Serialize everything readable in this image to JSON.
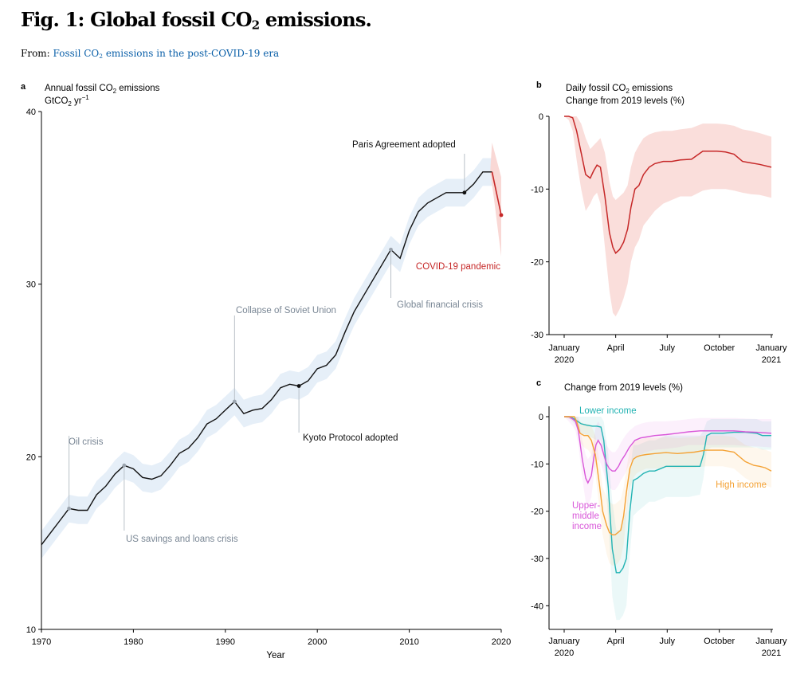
{
  "header": {
    "title_pre": "Fig. 1: Global fossil CO",
    "title_sub": "2",
    "title_post": " emissions.",
    "from_label": "From:",
    "source_pre": "Fossil CO",
    "source_sub": "2",
    "source_post": " emissions in the post-COVID-19 era"
  },
  "colors": {
    "black_line": "#111111",
    "covid_red": "#c62828",
    "red_band": "#f9d8d5",
    "blue_band": "#e6eff8",
    "annotation_gray": "#7a8795",
    "lower_income": "#22b3b3",
    "upper_middle_income": "#d957d9",
    "high_income": "#f4a235"
  },
  "chart_data": [
    {
      "panel": "a",
      "type": "line",
      "ylabel_line1": "Annual fossil CO",
      "ylabel_sub": "2",
      "ylabel_post": " emissions",
      "yunit_pre": "GtCO",
      "yunit_sub": "2",
      "yunit_post": " yr",
      "yunit_sup": "−1",
      "xlabel": "Year",
      "xlim": [
        1970,
        2020
      ],
      "ylim": [
        10,
        40
      ],
      "xticks": [
        1970,
        1980,
        1990,
        2000,
        2010,
        2020
      ],
      "yticks": [
        10,
        20,
        30,
        40
      ],
      "series": [
        {
          "x": [
            1970,
            1971,
            1972,
            1973,
            1974,
            1975,
            1976,
            1977,
            1978,
            1979,
            1980,
            1981,
            1982,
            1983,
            1984,
            1985,
            1986,
            1987,
            1988,
            1989,
            1990,
            1991,
            1992,
            1993,
            1994,
            1995,
            1996,
            1997,
            1998,
            1999,
            2000,
            2001,
            2002,
            2003,
            2004,
            2005,
            2006,
            2007,
            2008,
            2009,
            2010,
            2011,
            2012,
            2013,
            2014,
            2015,
            2016,
            2017,
            2018,
            2019
          ],
          "y": [
            14.9,
            15.6,
            16.3,
            17.0,
            16.9,
            16.9,
            17.8,
            18.3,
            19.0,
            19.5,
            19.3,
            18.8,
            18.7,
            18.9,
            19.5,
            20.2,
            20.5,
            21.1,
            21.9,
            22.2,
            22.7,
            23.2,
            22.5,
            22.7,
            22.8,
            23.3,
            24.0,
            24.2,
            24.1,
            24.4,
            25.1,
            25.3,
            25.9,
            27.2,
            28.4,
            29.3,
            30.2,
            31.1,
            32.0,
            31.5,
            33.1,
            34.2,
            34.7,
            35.0,
            35.3,
            35.3,
            35.3,
            35.8,
            36.5,
            36.5
          ],
          "band": 0.8
        },
        {
          "name": "COVID-19 pandemic",
          "x": [
            2019,
            2020
          ],
          "y": [
            36.5,
            34.0
          ]
        }
      ],
      "annotations": [
        {
          "text": "Oil crisis",
          "x": 1973,
          "y": 17.0
        },
        {
          "text": "US savings and loans crisis",
          "x": 1979,
          "y": 19.5
        },
        {
          "text": "Collapse of Soviet Union",
          "x": 1991,
          "y": 23.2
        },
        {
          "text": "Kyoto Protocol adopted",
          "x": 1998,
          "y": 24.1
        },
        {
          "text": "Global financial crisis",
          "x": 2008,
          "y": 32.0
        },
        {
          "text": "Paris Agreement adopted",
          "x": 2016,
          "y": 35.3
        },
        {
          "text": "COVID-19 pandemic",
          "x": 2020,
          "y": 34.0
        }
      ]
    },
    {
      "panel": "b",
      "type": "line",
      "title_pre": "Daily fossil CO",
      "title_sub": "2",
      "title_post": " emissions",
      "subtitle": "Change from 2019 levels (%)",
      "ylim": [
        -30,
        0
      ],
      "yticks": [
        0,
        -10,
        -20,
        -30
      ],
      "xlim": [
        0,
        366
      ],
      "xticks": [
        {
          "day": 0,
          "line1": "January",
          "line2": "2020"
        },
        {
          "day": 91,
          "line1": "April",
          "line2": ""
        },
        {
          "day": 182,
          "line1": "July",
          "line2": ""
        },
        {
          "day": 274,
          "line1": "October",
          "line2": ""
        },
        {
          "day": 366,
          "line1": "January",
          "line2": "2021"
        }
      ],
      "series": [
        {
          "x": [
            0,
            8,
            15,
            22,
            30,
            38,
            46,
            52,
            58,
            64,
            72,
            80,
            86,
            91,
            98,
            105,
            112,
            118,
            125,
            132,
            140,
            150,
            160,
            175,
            190,
            205,
            225,
            245,
            260,
            270,
            285,
            300,
            315,
            330,
            345,
            366
          ],
          "y": [
            0,
            0,
            -0.2,
            -2,
            -5,
            -8,
            -8.5,
            -7.5,
            -6.7,
            -7,
            -11,
            -16,
            -18,
            -18.8,
            -18.3,
            -17.3,
            -15.5,
            -12.5,
            -10,
            -9.5,
            -8,
            -7,
            -6.5,
            -6.2,
            -6.2,
            -6,
            -5.9,
            -4.8,
            -4.8,
            -4.8,
            -4.9,
            -5.2,
            -6.2,
            -6.4,
            -6.6,
            -7.0
          ],
          "lower": [
            0,
            -0.5,
            -2,
            -6,
            -10,
            -13,
            -12,
            -11,
            -10.5,
            -12,
            -18,
            -24,
            -27,
            -27.5,
            -26.5,
            -25,
            -23,
            -20,
            -18,
            -17,
            -15,
            -14,
            -13,
            -12,
            -11.5,
            -11,
            -11,
            -10.2,
            -10,
            -10,
            -10,
            -10.2,
            -10.5,
            -10.7,
            -10.8,
            -11.2
          ],
          "upper": [
            0,
            0,
            0,
            0,
            -1,
            -3,
            -4.5,
            -4,
            -3.5,
            -3,
            -5,
            -9,
            -11,
            -11.5,
            -11,
            -10.5,
            -9.5,
            -7,
            -5,
            -4,
            -3,
            -2.5,
            -2.2,
            -2,
            -2,
            -1.8,
            -1.6,
            -1,
            -1,
            -1,
            -1.1,
            -1.3,
            -1.8,
            -2,
            -2.3,
            -2.8
          ]
        }
      ]
    },
    {
      "panel": "c",
      "type": "line",
      "subtitle": "Change from 2019 levels (%)",
      "ylim": [
        -45,
        0
      ],
      "yticks": [
        0,
        -10,
        -20,
        -30,
        -40
      ],
      "xlim": [
        0,
        366
      ],
      "xticks": [
        {
          "day": 0,
          "line1": "January",
          "line2": "2020"
        },
        {
          "day": 91,
          "line1": "April",
          "line2": ""
        },
        {
          "day": 182,
          "line1": "July",
          "line2": ""
        },
        {
          "day": 274,
          "line1": "October",
          "line2": ""
        },
        {
          "day": 366,
          "line1": "January",
          "line2": "2021"
        }
      ],
      "series": [
        {
          "name": "Lower income",
          "x": [
            0,
            10,
            18,
            24,
            30,
            40,
            50,
            58,
            65,
            70,
            78,
            85,
            92,
            98,
            104,
            110,
            116,
            122,
            130,
            140,
            150,
            160,
            170,
            180,
            200,
            220,
            240,
            246,
            252,
            260,
            280,
            300,
            320,
            340,
            350,
            366
          ],
          "y": [
            0,
            0,
            -0.5,
            -1,
            -1.5,
            -1.8,
            -2,
            -2,
            -2.2,
            -5,
            -15,
            -28,
            -33,
            -33,
            -32,
            -30,
            -20,
            -13.5,
            -13,
            -12,
            -11.5,
            -11.5,
            -11,
            -10.5,
            -10.5,
            -10.5,
            -10.5,
            -8,
            -4,
            -3.5,
            -3.5,
            -3.3,
            -3.3,
            -3.5,
            -4.0,
            -4.0
          ],
          "lower": [
            0,
            -0.5,
            -1.5,
            -2.5,
            -3.5,
            -4,
            -4.5,
            -5,
            -5,
            -9,
            -22,
            -38,
            -43,
            -43,
            -42,
            -40,
            -29,
            -21,
            -20,
            -19,
            -18,
            -18,
            -17.5,
            -17,
            -17,
            -17,
            -16.5,
            -13,
            -7,
            -6.5,
            -6.5,
            -6.5,
            -6.5,
            -6.5,
            -7,
            -7
          ],
          "upper": [
            0,
            0,
            0,
            0,
            0,
            0,
            0,
            0,
            0,
            -1,
            -8,
            -18,
            -24,
            -24,
            -22,
            -20,
            -12,
            -6,
            -6,
            -5.5,
            -5,
            -5,
            -4.5,
            -4,
            -4,
            -4,
            -4,
            -3,
            -1,
            -0.5,
            -0.5,
            -0.5,
            -0.5,
            -0.5,
            -1,
            -1
          ]
        },
        {
          "name": "Upper-middle income",
          "x": [
            0,
            8,
            15,
            20,
            25,
            32,
            38,
            42,
            48,
            52,
            56,
            60,
            65,
            70,
            75,
            80,
            85,
            90,
            96,
            100,
            108,
            115,
            125,
            135,
            145,
            160,
            180,
            200,
            220,
            240,
            260,
            280,
            300,
            320,
            340,
            366
          ],
          "y": [
            0,
            0,
            -0.5,
            -1,
            -3,
            -9,
            -13,
            -14,
            -12.5,
            -9,
            -6,
            -5,
            -6,
            -8,
            -10,
            -11,
            -11.5,
            -11.5,
            -10.5,
            -9.5,
            -8,
            -6.5,
            -5,
            -4.5,
            -4.3,
            -4,
            -3.8,
            -3.5,
            -3.2,
            -3,
            -3,
            -3,
            -3,
            -3.2,
            -3.3,
            -3.5
          ],
          "lower": [
            0,
            -1,
            -2,
            -3,
            -6,
            -13,
            -18,
            -19,
            -17,
            -13,
            -10,
            -9,
            -10,
            -12,
            -14,
            -15,
            -15.5,
            -15.5,
            -14.5,
            -13.5,
            -12,
            -10,
            -8.5,
            -8,
            -7.5,
            -7,
            -6.8,
            -6.5,
            -6,
            -6,
            -6,
            -6,
            -6,
            -6.2,
            -6.3,
            -6.5
          ],
          "upper": [
            0,
            0,
            0,
            0,
            0,
            -5,
            -8,
            -9,
            -8,
            -5,
            -2,
            -1,
            -2,
            -4,
            -6,
            -7,
            -7.5,
            -7.5,
            -6.5,
            -5.5,
            -4,
            -3,
            -2,
            -1.5,
            -1.2,
            -1,
            -1,
            -0.8,
            -0.5,
            -0.3,
            -0.3,
            -0.3,
            -0.3,
            -0.4,
            -0.5,
            -0.5
          ]
        },
        {
          "name": "High income",
          "x": [
            0,
            10,
            18,
            22,
            28,
            35,
            42,
            48,
            55,
            62,
            68,
            75,
            80,
            85,
            90,
            95,
            100,
            105,
            110,
            116,
            122,
            128,
            135,
            145,
            160,
            180,
            200,
            230,
            250,
            280,
            300,
            320,
            335,
            345,
            355,
            366
          ],
          "y": [
            0,
            0,
            0,
            -1,
            -3.5,
            -4,
            -4,
            -5,
            -8,
            -14,
            -20,
            -23,
            -24.5,
            -25,
            -25,
            -24.5,
            -24,
            -21,
            -16,
            -11,
            -9,
            -8.5,
            -8.2,
            -8,
            -7.8,
            -7.6,
            -7.8,
            -7.5,
            -7.1,
            -7.1,
            -7.5,
            -9.5,
            -10.3,
            -10.5,
            -10.8,
            -11.5
          ],
          "lower": [
            0,
            -0.5,
            -1,
            -2,
            -5.5,
            -6.5,
            -7,
            -8,
            -12,
            -19,
            -25,
            -29,
            -31,
            -31.5,
            -31.5,
            -31,
            -30,
            -27,
            -21,
            -15,
            -13,
            -12,
            -11.5,
            -11,
            -11,
            -10.8,
            -11,
            -10.8,
            -10.5,
            -10.5,
            -11,
            -13,
            -14,
            -14.2,
            -14.5,
            -15
          ],
          "upper": [
            0,
            0,
            0,
            0,
            -1,
            -1.5,
            -1.5,
            -2,
            -4,
            -9,
            -15,
            -17,
            -18,
            -18.5,
            -18.5,
            -18,
            -17.5,
            -15,
            -11,
            -7,
            -5.5,
            -5,
            -4.8,
            -4.5,
            -4.5,
            -4.3,
            -4.5,
            -4.3,
            -4,
            -4,
            -4.3,
            -6,
            -6.5,
            -6.7,
            -7,
            -7.5
          ]
        }
      ]
    }
  ]
}
